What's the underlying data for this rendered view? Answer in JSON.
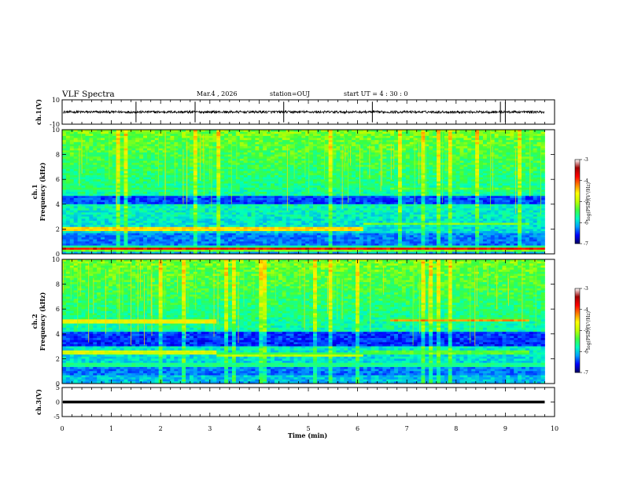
{
  "chart_data": {
    "type": "heatmap",
    "title": "VLF Spectra",
    "header": {
      "date": "Mar.4 , 2026",
      "station": "station=OUJ",
      "start_time": "start UT = 4 : 30 : 0"
    },
    "xlabel": "Time (min)",
    "xlim": [
      0,
      10
    ],
    "xticks": [
      "0",
      "1",
      "2",
      "3",
      "4",
      "5",
      "6",
      "7",
      "8",
      "9",
      "10"
    ],
    "data_end_min": 9.8,
    "panels": [
      {
        "id": "ch1-waveform",
        "type": "line",
        "ylabel": "ch.1(V)",
        "ylim": [
          -10,
          10
        ],
        "yticks": [
          "10",
          "-10"
        ],
        "baseline_v": 0,
        "noise_amplitude_v": 2,
        "spikes_min": [
          1.5,
          2.7,
          4.5,
          6.3,
          8.9,
          9.0
        ]
      },
      {
        "id": "ch1-spectrogram",
        "type": "heatmap",
        "ylabel": "ch.1\nFrequency (kHz)",
        "ylim": [
          0,
          10
        ],
        "yticks": [
          "0",
          "2",
          "4",
          "6",
          "8",
          "10"
        ],
        "bands": [
          {
            "t0": 0,
            "t1": 3.1,
            "f": 5.2,
            "level": 0.55
          },
          {
            "t0": 6.7,
            "t1": 9.5,
            "f": 5.2,
            "level": 0.6
          },
          {
            "t0": 0,
            "t1": 6.1,
            "f": 2.0,
            "level": 0.9
          },
          {
            "t0": 6.1,
            "t1": 9.5,
            "f": 2.4,
            "level": 0.6
          },
          {
            "t0": 0,
            "t1": 9.8,
            "f": 0.4,
            "level": 0.95
          }
        ],
        "quiet_band_khz": [
          4.0,
          4.7
        ]
      },
      {
        "id": "ch2-spectrogram",
        "type": "heatmap",
        "ylabel": "ch.2\nFrequency (kHz)",
        "ylim": [
          0,
          10
        ],
        "yticks": [
          "0",
          "2",
          "4",
          "6",
          "8",
          "10"
        ],
        "bands": [
          {
            "t0": 0,
            "t1": 3.1,
            "f": 5.0,
            "level": 0.85
          },
          {
            "t0": 6.7,
            "t1": 9.5,
            "f": 5.1,
            "level": 0.85
          },
          {
            "t0": 0,
            "t1": 3.1,
            "f": 2.5,
            "level": 0.8
          },
          {
            "t0": 3.1,
            "t1": 6.1,
            "f": 2.3,
            "level": 0.7
          },
          {
            "t0": 6.1,
            "t1": 9.5,
            "f": 2.5,
            "level": 0.65
          },
          {
            "t0": 0,
            "t1": 9.8,
            "f": 1.5,
            "level": 0.55
          }
        ],
        "quiet_band_khz": [
          3.0,
          4.2
        ]
      },
      {
        "id": "ch3-waveform",
        "type": "line",
        "ylabel": "ch.3(V)",
        "ylim": [
          -5,
          5
        ],
        "yticks": [
          "5",
          "0",
          "-5"
        ],
        "baseline_v": 0
      }
    ],
    "colorbar": {
      "label": "log(PSD)(V²/Hz)",
      "range": [
        -7,
        -3
      ],
      "ticks": [
        "-3",
        "-4",
        "-5",
        "-6",
        "-7"
      ],
      "colors": [
        "#000060",
        "#0000ff",
        "#00a0ff",
        "#00ffc0",
        "#40ff40",
        "#c0ff00",
        "#ffff00",
        "#ff8000",
        "#ff0000",
        "#a00000",
        "#ffffff"
      ]
    }
  }
}
